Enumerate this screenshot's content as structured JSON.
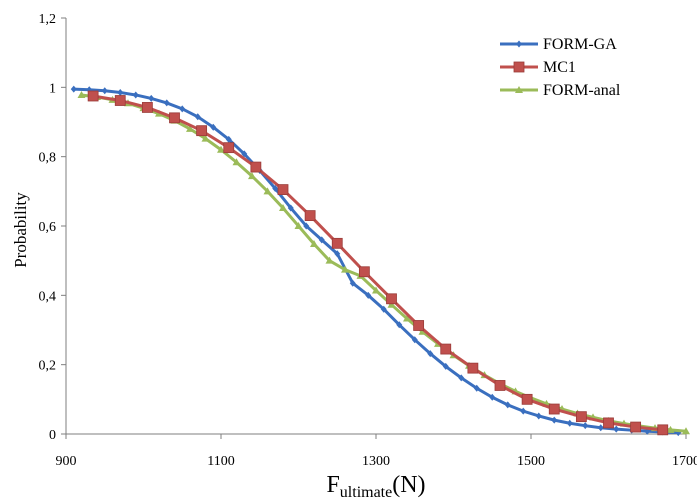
{
  "chart_data": {
    "type": "line",
    "title": "",
    "xlabel_main": "F",
    "xlabel_sub": "ultimate",
    "xlabel_unit": "(N)",
    "ylabel": "Probability",
    "xlim": [
      900,
      1700
    ],
    "ylim": [
      0,
      1.2
    ],
    "x_ticks": [
      900,
      1100,
      1300,
      1500,
      1700
    ],
    "x_tick_labels": [
      "900",
      "1100",
      "1300",
      "1500",
      "1700"
    ],
    "y_ticks": [
      0,
      0.2,
      0.4,
      0.6,
      0.8,
      1,
      1.2
    ],
    "y_tick_labels": [
      "0",
      "0,2",
      "0,4",
      "0,6",
      "0,8",
      "1",
      "1,2"
    ],
    "grid": false,
    "legend_position": "top-right",
    "series": [
      {
        "name": "FORM-GA",
        "color": "#3a6fbf",
        "marker": "diamond",
        "x": [
          910,
          930,
          950,
          970,
          990,
          1010,
          1030,
          1050,
          1070,
          1090,
          1110,
          1130,
          1150,
          1170,
          1190,
          1210,
          1230,
          1250,
          1270,
          1290,
          1310,
          1330,
          1350,
          1370,
          1390,
          1410,
          1430,
          1450,
          1470,
          1490,
          1510,
          1530,
          1550,
          1570,
          1590,
          1610,
          1630,
          1650,
          1670,
          1690
        ],
        "y": [
          0.995,
          0.993,
          0.99,
          0.985,
          0.978,
          0.968,
          0.955,
          0.938,
          0.915,
          0.885,
          0.85,
          0.808,
          0.76,
          0.708,
          0.652,
          0.6,
          0.56,
          0.52,
          0.435,
          0.4,
          0.36,
          0.315,
          0.272,
          0.232,
          0.195,
          0.162,
          0.132,
          0.106,
          0.084,
          0.066,
          0.052,
          0.04,
          0.031,
          0.024,
          0.018,
          0.014,
          0.011,
          0.008,
          0.006,
          0.004
        ]
      },
      {
        "name": "MC1",
        "color": "#c0504d",
        "marker": "square",
        "x": [
          935,
          970,
          1005,
          1040,
          1075,
          1110,
          1145,
          1180,
          1215,
          1250,
          1285,
          1320,
          1355,
          1390,
          1425,
          1460,
          1495,
          1530,
          1565,
          1600,
          1635,
          1670
        ],
        "y": [
          0.975,
          0.962,
          0.942,
          0.912,
          0.875,
          0.826,
          0.77,
          0.705,
          0.63,
          0.55,
          0.468,
          0.39,
          0.313,
          0.245,
          0.19,
          0.14,
          0.1,
          0.072,
          0.05,
          0.032,
          0.02,
          0.012
        ]
      },
      {
        "name": "FORM-anal",
        "color": "#9bbb59",
        "marker": "triangle",
        "x": [
          920,
          940,
          960,
          980,
          1000,
          1020,
          1040,
          1060,
          1080,
          1100,
          1120,
          1140,
          1160,
          1180,
          1200,
          1220,
          1240,
          1260,
          1280,
          1300,
          1320,
          1340,
          1360,
          1380,
          1400,
          1420,
          1440,
          1460,
          1480,
          1500,
          1520,
          1540,
          1560,
          1580,
          1600,
          1620,
          1640,
          1660,
          1680,
          1700
        ],
        "y": [
          0.978,
          0.972,
          0.964,
          0.954,
          0.94,
          0.924,
          0.904,
          0.88,
          0.852,
          0.82,
          0.784,
          0.744,
          0.7,
          0.652,
          0.6,
          0.548,
          0.5,
          0.474,
          0.456,
          0.414,
          0.373,
          0.333,
          0.295,
          0.26,
          0.227,
          0.197,
          0.17,
          0.145,
          0.123,
          0.104,
          0.087,
          0.072,
          0.059,
          0.048,
          0.038,
          0.03,
          0.023,
          0.017,
          0.012,
          0.008
        ]
      }
    ]
  }
}
